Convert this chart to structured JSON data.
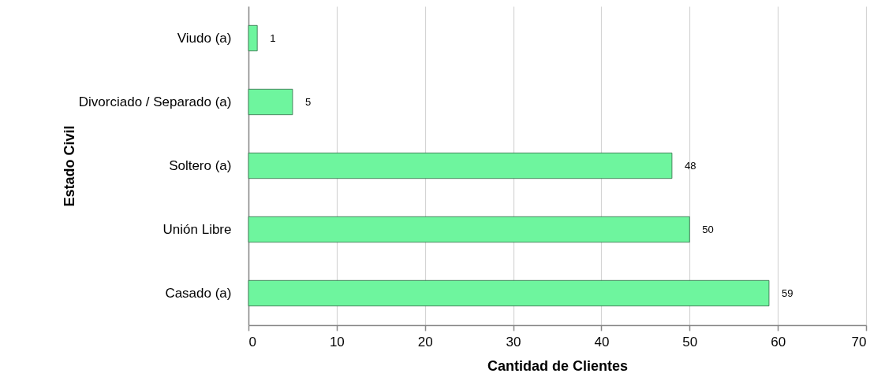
{
  "chart_data": {
    "type": "bar",
    "orientation": "horizontal",
    "xlabel": "Cantidad de Clientes",
    "ylabel": "Estado Civil",
    "categories": [
      "Viudo (a)",
      "Divorciado / Separado (a)",
      "Soltero (a)",
      "Unión Libre",
      "Casado (a)"
    ],
    "values": [
      1,
      5,
      48,
      50,
      59
    ],
    "color": "#6ef59e",
    "xlim": [
      0,
      70
    ],
    "xticks": [
      0,
      10,
      20,
      30,
      40,
      50,
      60,
      70
    ],
    "grid": "x",
    "data_labels": true
  }
}
